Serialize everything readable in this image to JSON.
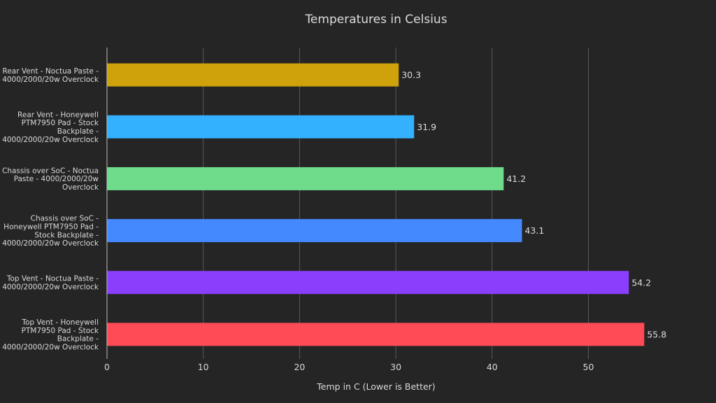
{
  "chart_data": {
    "type": "bar",
    "orientation": "horizontal",
    "title": "Temperatures in Celsius",
    "xlabel": "Temp in C (Lower is Better)",
    "ylabel": "",
    "xlim": [
      0,
      56.5
    ],
    "xticks": [
      0,
      10,
      20,
      30,
      40,
      50
    ],
    "grid": true,
    "categories": [
      [
        "Rear Vent - Noctua Paste -",
        "4000/2000/20w Overclock"
      ],
      [
        "Rear Vent - Honeywell",
        "PTM7950 Pad - Stock",
        "Backplate -",
        "4000/2000/20w Overclock"
      ],
      [
        "Chassis over SoC - Noctua",
        "Paste - 4000/2000/20w",
        "Overclock"
      ],
      [
        "Chassis over SoC -",
        "Honeywell PTM7950 Pad -",
        "Stock Backplate -",
        "4000/2000/20w Overclock"
      ],
      [
        "Top Vent - Noctua Paste -",
        "4000/2000/20w Overclock"
      ],
      [
        "Top Vent - Honeywell",
        "PTM7950 Pad - Stock",
        "Backplate -",
        "4000/2000/20w Overclock"
      ]
    ],
    "values": [
      30.3,
      31.9,
      41.2,
      43.1,
      54.2,
      55.8
    ],
    "value_labels": [
      "30.3",
      "31.9",
      "41.2",
      "43.1",
      "54.2",
      "55.8"
    ],
    "colors": [
      "#cfa10a",
      "#33b1ff",
      "#6fdc8c",
      "#4589ff",
      "#8a3ffc",
      "#ff4b55"
    ]
  }
}
